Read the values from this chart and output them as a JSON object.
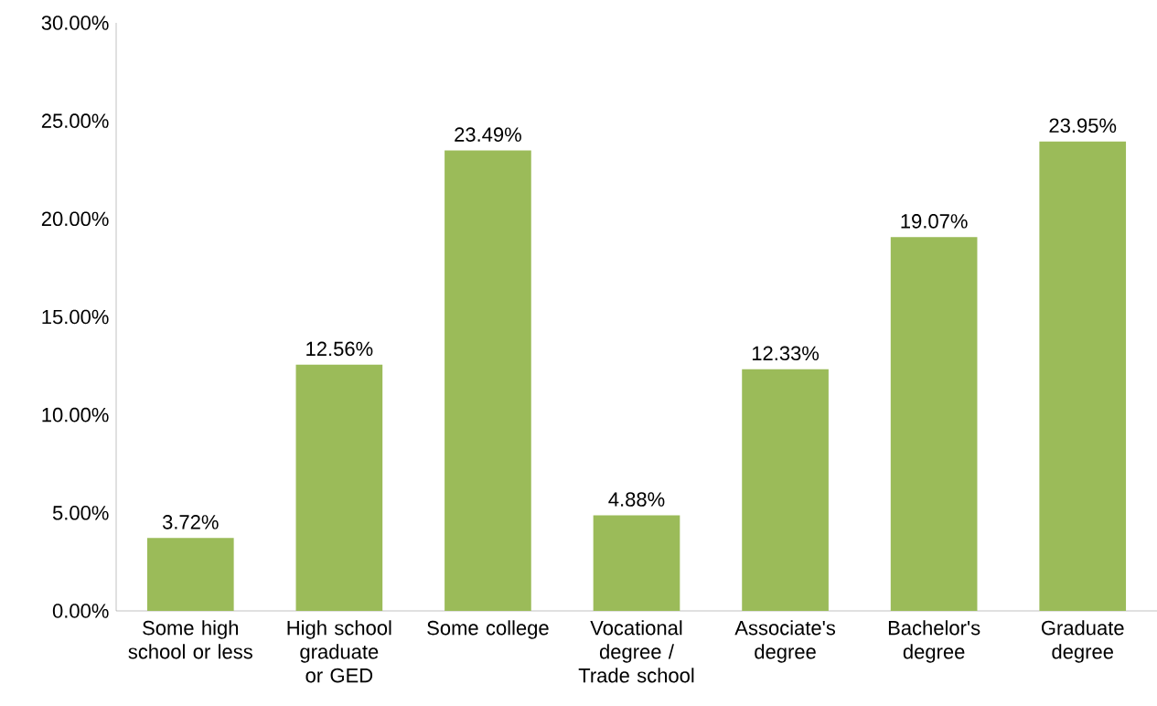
{
  "chart_data": {
    "type": "bar",
    "categories": [
      "Some high school or less",
      "High school graduate or GED",
      "Some college",
      "Vocational degree / Trade school",
      "Associate's degree",
      "Bachelor's degree",
      "Graduate degree"
    ],
    "values": [
      3.72,
      12.56,
      23.49,
      4.88,
      12.33,
      19.07,
      23.95
    ],
    "value_labels": [
      "3.72%",
      "12.56%",
      "23.49%",
      "4.88%",
      "12.33%",
      "19.07%",
      "23.95%"
    ],
    "color": "#9bbb59",
    "ylim": [
      0,
      30
    ],
    "yticks": [
      {
        "value": 0,
        "label": "0.00%"
      },
      {
        "value": 5,
        "label": "5.00%"
      },
      {
        "value": 10,
        "label": "10.00%"
      },
      {
        "value": 15,
        "label": "15.00%"
      },
      {
        "value": 20,
        "label": "20.00%"
      },
      {
        "value": 25,
        "label": "25.00%"
      },
      {
        "value": 30,
        "label": "30.00%"
      }
    ],
    "grid": false
  }
}
